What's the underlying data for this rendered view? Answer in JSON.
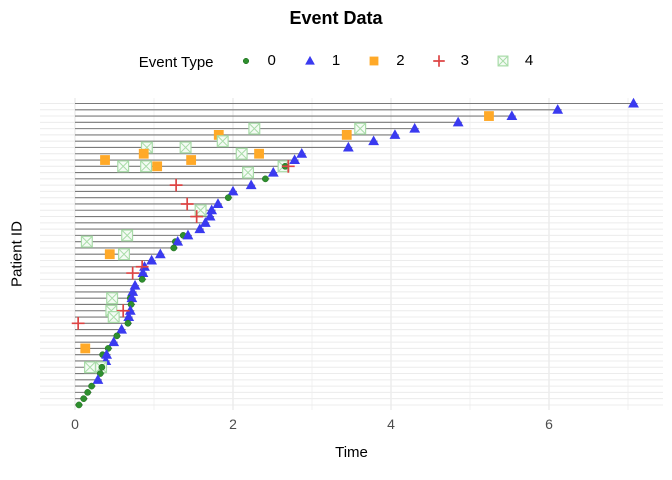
{
  "chart_data": {
    "type": "scatter",
    "subtype": "patient-event-timeline",
    "title": "Event Data",
    "legend_title": "Event Type",
    "xlabel": "Time",
    "ylabel": "Patient ID",
    "xlim": [
      -0.45,
      7.5
    ],
    "x_ticks": [
      {
        "value": 0,
        "label": "0"
      },
      {
        "value": 2,
        "label": "2"
      },
      {
        "value": 4,
        "label": "4"
      },
      {
        "value": 6,
        "label": "6"
      }
    ],
    "x_minor_gridlines": [
      1,
      3,
      5,
      7
    ],
    "y_tick_labels_visible": false,
    "grid": "on",
    "legend_position": "top-center",
    "event_types": [
      {
        "label": "0",
        "shape": "circle",
        "color": "#2E8F2E"
      },
      {
        "label": "1",
        "shape": "triangle",
        "color": "#3A3AF0"
      },
      {
        "label": "2",
        "shape": "square",
        "color": "#FFA928"
      },
      {
        "label": "3",
        "shape": "plus",
        "color": "#DD4444"
      },
      {
        "label": "4",
        "shape": "open-square-x",
        "color": "#A8DCA8",
        "fill": "#F4FBF4"
      }
    ],
    "patients": [
      {
        "end_time": 7.07,
        "end_event": 1,
        "events": []
      },
      {
        "end_time": 6.11,
        "end_event": 1,
        "events": []
      },
      {
        "end_time": 5.53,
        "end_event": 1,
        "events": [
          {
            "type": 2,
            "time": 5.24
          }
        ]
      },
      {
        "end_time": 4.85,
        "end_event": 1,
        "events": []
      },
      {
        "end_time": 4.3,
        "end_event": 1,
        "events": [
          {
            "type": 4,
            "time": 2.27
          },
          {
            "type": 4,
            "time": 3.61
          }
        ]
      },
      {
        "end_time": 4.05,
        "end_event": 1,
        "events": [
          {
            "type": 2,
            "time": 1.82
          },
          {
            "type": 2,
            "time": 3.44
          }
        ]
      },
      {
        "end_time": 3.78,
        "end_event": 1,
        "events": [
          {
            "type": 4,
            "time": 1.87
          }
        ]
      },
      {
        "end_time": 3.46,
        "end_event": 1,
        "events": [
          {
            "type": 4,
            "time": 0.91
          },
          {
            "type": 4,
            "time": 1.4
          }
        ]
      },
      {
        "end_time": 2.87,
        "end_event": 1,
        "events": [
          {
            "type": 2,
            "time": 0.87
          },
          {
            "type": 4,
            "time": 2.11
          },
          {
            "type": 2,
            "time": 2.33
          }
        ]
      },
      {
        "end_time": 2.78,
        "end_event": 1,
        "events": [
          {
            "type": 2,
            "time": 0.38
          },
          {
            "type": 2,
            "time": 1.47
          }
        ]
      },
      {
        "end_time": 2.66,
        "end_event": 0,
        "events": [
          {
            "type": 4,
            "time": 0.61
          },
          {
            "type": 4,
            "time": 0.9
          },
          {
            "type": 2,
            "time": 1.04
          },
          {
            "type": 4,
            "time": 2.64
          },
          {
            "type": 3,
            "time": 2.7
          }
        ]
      },
      {
        "end_time": 2.51,
        "end_event": 1,
        "events": [
          {
            "type": 4,
            "time": 2.19
          }
        ]
      },
      {
        "end_time": 2.41,
        "end_event": 0,
        "events": []
      },
      {
        "end_time": 2.23,
        "end_event": 1,
        "events": [
          {
            "type": 3,
            "time": 1.28
          }
        ]
      },
      {
        "end_time": 2.0,
        "end_event": 1,
        "events": []
      },
      {
        "end_time": 1.94,
        "end_event": 0,
        "events": []
      },
      {
        "end_time": 1.81,
        "end_event": 1,
        "events": [
          {
            "type": 3,
            "time": 1.42
          }
        ]
      },
      {
        "end_time": 1.73,
        "end_event": 1,
        "events": [
          {
            "type": 4,
            "time": 1.59
          }
        ]
      },
      {
        "end_time": 1.71,
        "end_event": 1,
        "events": [
          {
            "type": 3,
            "time": 1.54
          }
        ]
      },
      {
        "end_time": 1.65,
        "end_event": 1,
        "events": []
      },
      {
        "end_time": 1.58,
        "end_event": 1,
        "events": []
      },
      {
        "end_time": 1.43,
        "end_event": 1,
        "events": [
          {
            "type": 0,
            "time": 1.37
          },
          {
            "type": 4,
            "time": 0.66
          }
        ]
      },
      {
        "end_time": 1.3,
        "end_event": 1,
        "events": [
          {
            "type": 0,
            "time": 1.27
          },
          {
            "type": 4,
            "time": 0.15
          }
        ]
      },
      {
        "end_time": 1.25,
        "end_event": 0,
        "events": []
      },
      {
        "end_time": 1.08,
        "end_event": 1,
        "events": [
          {
            "type": 2,
            "time": 0.44
          },
          {
            "type": 4,
            "time": 0.62
          }
        ]
      },
      {
        "end_time": 0.97,
        "end_event": 1,
        "events": []
      },
      {
        "end_time": 0.88,
        "end_event": 1,
        "events": [
          {
            "type": 3,
            "time": 0.85
          }
        ]
      },
      {
        "end_time": 0.86,
        "end_event": 1,
        "events": [
          {
            "type": 3,
            "time": 0.73
          }
        ]
      },
      {
        "end_time": 0.85,
        "end_event": 0,
        "events": []
      },
      {
        "end_time": 0.76,
        "end_event": 1,
        "events": []
      },
      {
        "end_time": 0.73,
        "end_event": 1,
        "events": []
      },
      {
        "end_time": 0.72,
        "end_event": 1,
        "events": [
          {
            "type": 4,
            "time": 0.47
          },
          {
            "type": 0,
            "time": 0.7
          }
        ]
      },
      {
        "end_time": 0.71,
        "end_event": 0,
        "events": []
      },
      {
        "end_time": 0.7,
        "end_event": 1,
        "events": [
          {
            "type": 3,
            "time": 0.61
          },
          {
            "type": 4,
            "time": 0.46
          }
        ]
      },
      {
        "end_time": 0.68,
        "end_event": 1,
        "events": [
          {
            "type": 4,
            "time": 0.49
          }
        ]
      },
      {
        "end_time": 0.67,
        "end_event": 0,
        "events": [
          {
            "type": 3,
            "time": 0.04
          }
        ]
      },
      {
        "end_time": 0.59,
        "end_event": 1,
        "events": []
      },
      {
        "end_time": 0.53,
        "end_event": 0,
        "events": []
      },
      {
        "end_time": 0.49,
        "end_event": 1,
        "events": []
      },
      {
        "end_time": 0.42,
        "end_event": 0,
        "events": [
          {
            "type": 2,
            "time": 0.13
          }
        ]
      },
      {
        "end_time": 0.4,
        "end_event": 1,
        "events": [
          {
            "type": 0,
            "time": 0.35
          }
        ]
      },
      {
        "end_time": 0.39,
        "end_event": 1,
        "events": []
      },
      {
        "end_time": 0.34,
        "end_event": 0,
        "events": [
          {
            "type": 4,
            "time": 0.19
          },
          {
            "type": 4,
            "time": 0.33
          }
        ]
      },
      {
        "end_time": 0.32,
        "end_event": 0,
        "events": []
      },
      {
        "end_time": 0.29,
        "end_event": 1,
        "events": []
      },
      {
        "end_time": 0.21,
        "end_event": 0,
        "events": []
      },
      {
        "end_time": 0.16,
        "end_event": 0,
        "events": []
      },
      {
        "end_time": 0.11,
        "end_event": 0,
        "events": []
      },
      {
        "end_time": 0.05,
        "end_event": 0,
        "events": []
      }
    ]
  },
  "colors": {
    "background": "#FFFFFF",
    "grid_major": "#E3E3E3",
    "grid_minor": "#F1F1F1",
    "row_gridline": "#ECECEC",
    "patient_line": "#7A7A7A",
    "tick_label": "#4D4D4D",
    "text": "#000000"
  }
}
